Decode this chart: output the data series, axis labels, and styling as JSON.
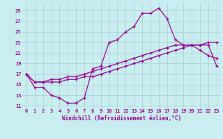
{
  "xlabel": "Windchill (Refroidissement éolien,°C)",
  "bg_color": "#c8eef0",
  "line_color": "#990099",
  "grid_color": "#aacccc",
  "xlim": [
    -0.5,
    23.5
  ],
  "ylim": [
    10.5,
    30.5
  ],
  "yticks": [
    11,
    13,
    15,
    17,
    19,
    21,
    23,
    25,
    27,
    29
  ],
  "xticks": [
    0,
    1,
    2,
    3,
    4,
    5,
    6,
    7,
    8,
    9,
    10,
    11,
    12,
    13,
    14,
    15,
    16,
    17,
    18,
    19,
    20,
    21,
    22,
    23
  ],
  "line1_x": [
    0,
    1,
    2,
    3,
    4,
    5,
    6,
    7,
    8,
    9,
    10,
    11,
    12,
    13,
    14,
    15,
    16,
    17,
    18,
    19,
    20,
    21,
    22,
    23
  ],
  "line1_y": [
    17.0,
    14.5,
    14.5,
    13.0,
    12.5,
    11.5,
    11.5,
    12.5,
    18.0,
    18.5,
    23.0,
    23.5,
    25.0,
    26.0,
    28.5,
    28.5,
    29.5,
    27.5,
    23.5,
    22.5,
    22.5,
    21.5,
    20.5,
    20.0
  ],
  "line2_x": [
    0,
    1,
    2,
    3,
    4,
    5,
    6,
    7,
    8,
    9,
    10,
    11,
    12,
    13,
    14,
    15,
    16,
    17,
    18,
    19,
    20,
    21,
    22,
    23
  ],
  "line2_y": [
    17.0,
    15.5,
    15.5,
    15.5,
    15.5,
    16.0,
    16.0,
    16.5,
    16.5,
    17.0,
    17.5,
    18.0,
    18.5,
    19.0,
    19.5,
    20.0,
    20.5,
    21.0,
    21.5,
    22.0,
    22.5,
    22.5,
    23.0,
    23.0
  ],
  "line3_x": [
    0,
    1,
    2,
    3,
    4,
    5,
    6,
    7,
    8,
    9,
    10,
    11,
    12,
    13,
    14,
    15,
    16,
    17,
    18,
    19,
    20,
    21,
    22,
    23
  ],
  "line3_y": [
    17.0,
    15.5,
    15.5,
    16.0,
    16.0,
    16.5,
    16.5,
    17.0,
    17.5,
    18.0,
    18.5,
    19.0,
    19.5,
    20.0,
    20.5,
    21.0,
    21.5,
    22.0,
    22.5,
    22.5,
    22.5,
    22.5,
    22.5,
    18.5
  ],
  "tick_fontsize": 5,
  "xlabel_fontsize": 5.5
}
